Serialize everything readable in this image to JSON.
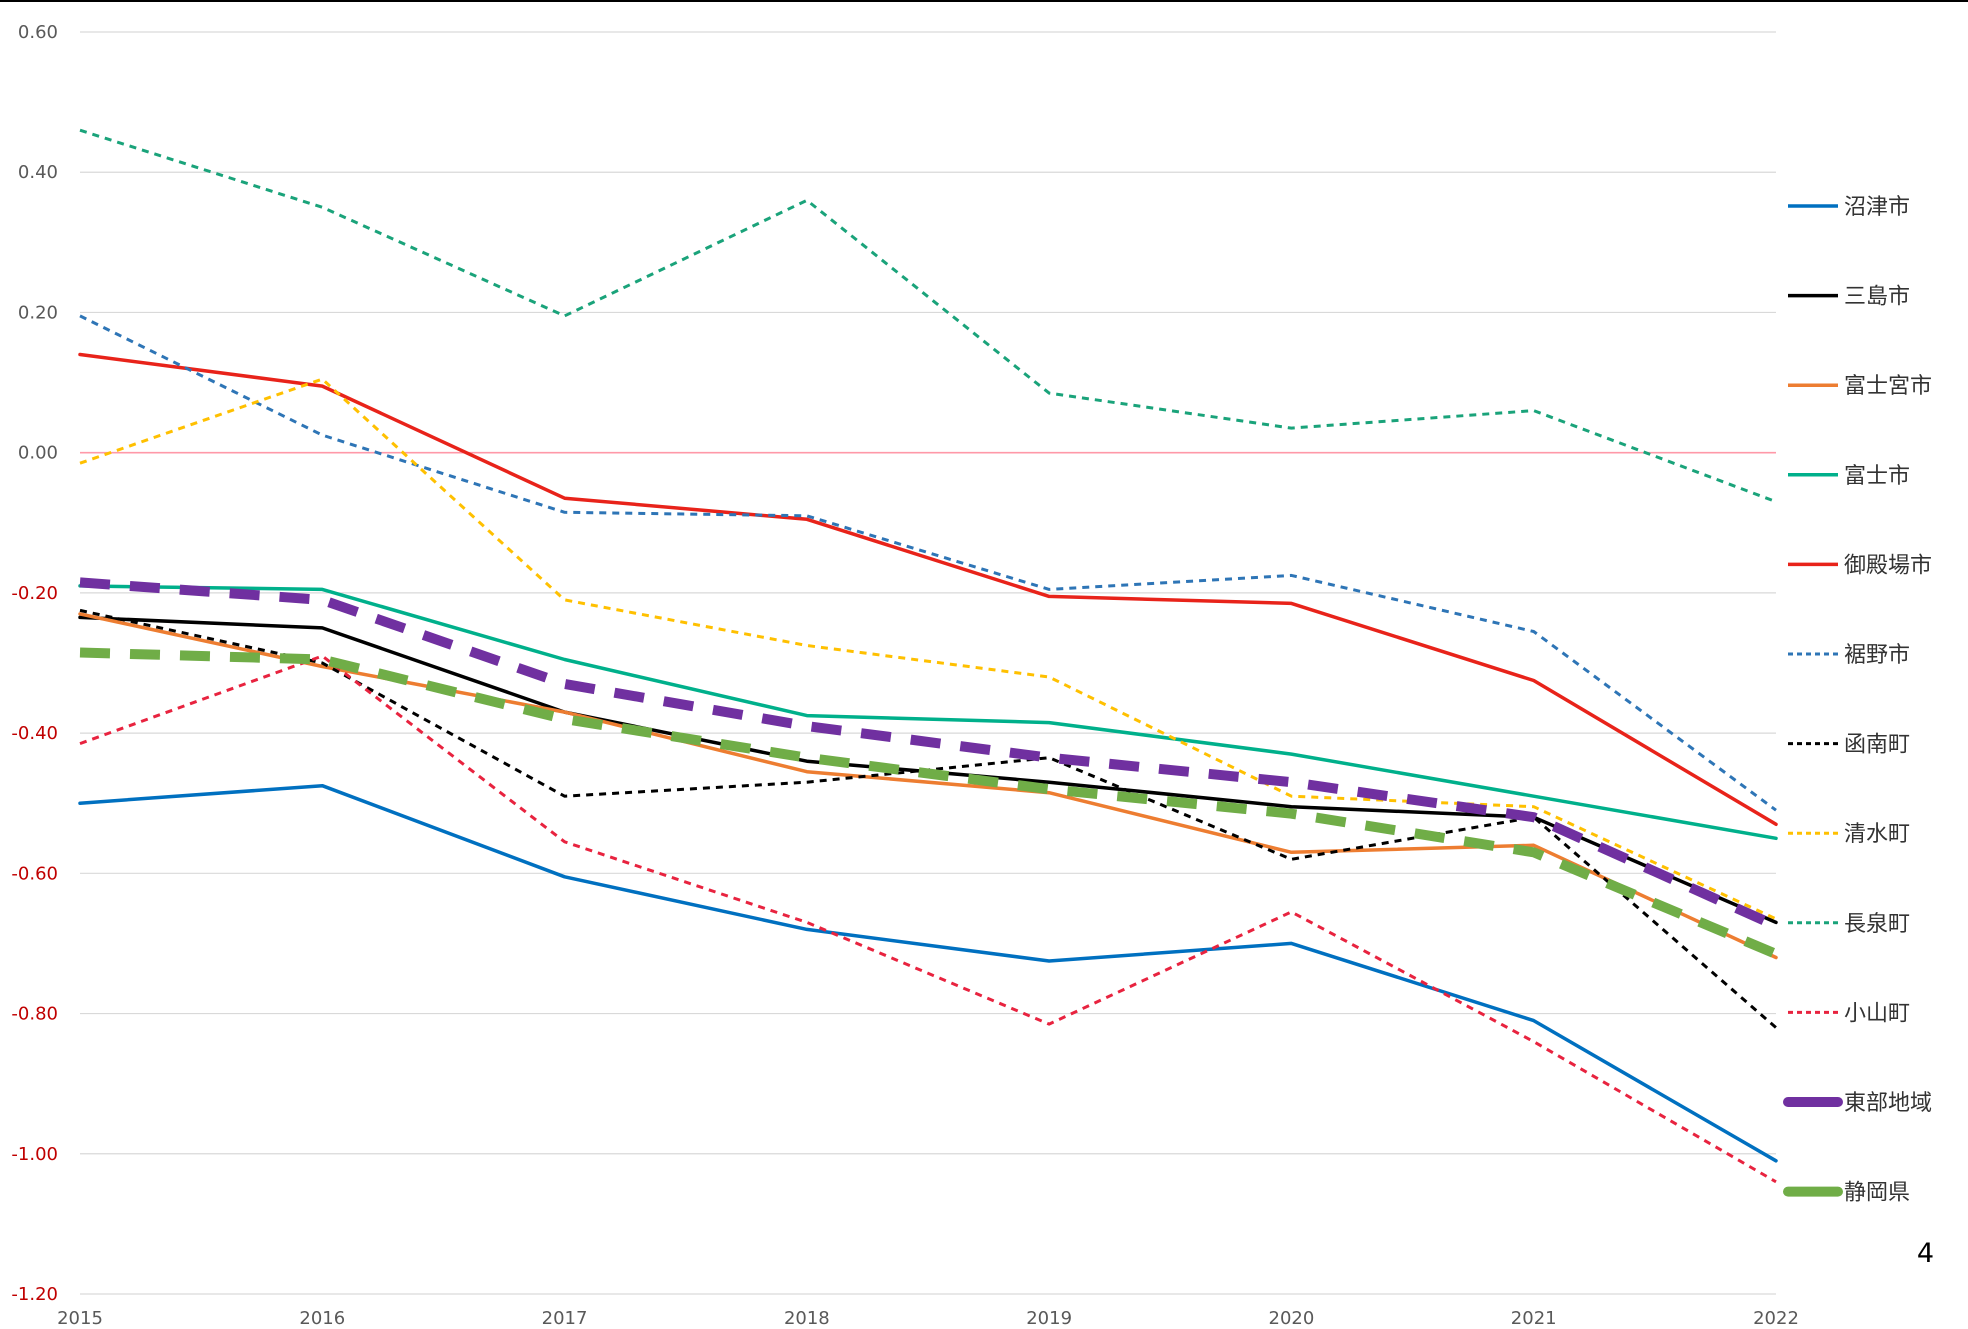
{
  "page_number": "4",
  "chart_data": {
    "type": "line",
    "title": "",
    "xlabel": "",
    "ylabel": "",
    "x": [
      "2015",
      "2016",
      "2017",
      "2018",
      "2019",
      "2020",
      "2021",
      "2022"
    ],
    "ylim": [
      -1.2,
      0.6
    ],
    "y_ticks": [
      "0.60",
      "0.40",
      "0.20",
      "0.00",
      "-0.20",
      "-0.40",
      "-0.60",
      "-0.80",
      "-1.00",
      "-1.20"
    ],
    "grid": true,
    "legend_position": "right",
    "colors": {
      "positive_tick_label": "#595959",
      "negative_tick_label": "#c00000",
      "gridline": "#d9d9d9",
      "zero_line": "#ff99a8",
      "x_tick_label": "#595959"
    },
    "series": [
      {
        "name": "沼津市",
        "color": "#0070c0",
        "style": "solid",
        "values": [
          -0.5,
          -0.475,
          -0.605,
          -0.68,
          -0.725,
          -0.7,
          -0.81,
          -1.01
        ]
      },
      {
        "name": "三島市",
        "color": "#000000",
        "style": "solid",
        "values": [
          -0.235,
          -0.25,
          -0.37,
          -0.44,
          -0.47,
          -0.505,
          -0.52,
          -0.67
        ]
      },
      {
        "name": "富士宮市",
        "color": "#ed7d31",
        "style": "solid",
        "values": [
          -0.23,
          -0.305,
          -0.37,
          -0.455,
          -0.485,
          -0.57,
          -0.56,
          -0.72
        ]
      },
      {
        "name": "富士市",
        "color": "#00b08b",
        "style": "solid",
        "values": [
          -0.19,
          -0.195,
          -0.295,
          -0.375,
          -0.385,
          -0.43,
          -0.49,
          -0.55
        ]
      },
      {
        "name": "御殿場市",
        "color": "#e8231a",
        "style": "solid",
        "values": [
          0.14,
          0.095,
          -0.065,
          -0.095,
          -0.205,
          -0.215,
          -0.325,
          -0.53
        ]
      },
      {
        "name": "裾野市",
        "color": "#2e75b6",
        "style": "dashed",
        "values": [
          0.195,
          0.025,
          -0.085,
          -0.09,
          -0.195,
          -0.175,
          -0.255,
          -0.51
        ]
      },
      {
        "name": "函南町",
        "color": "#000000",
        "style": "dashed",
        "values": [
          -0.225,
          -0.3,
          -0.49,
          -0.47,
          -0.435,
          -0.58,
          -0.52,
          -0.82
        ]
      },
      {
        "name": "清水町",
        "color": "#ffc000",
        "style": "dashed",
        "values": [
          -0.015,
          0.105,
          -0.21,
          -0.275,
          -0.32,
          -0.49,
          -0.505,
          -0.665
        ]
      },
      {
        "name": "長泉町",
        "color": "#1aa37a",
        "style": "dashed",
        "values": [
          0.46,
          0.35,
          0.195,
          0.36,
          0.085,
          0.035,
          0.06,
          -0.07
        ]
      },
      {
        "name": "小山町",
        "color": "#e8233f",
        "style": "dashed",
        "values": [
          -0.415,
          -0.29,
          -0.555,
          -0.67,
          -0.815,
          -0.655,
          -0.84,
          -1.04
        ]
      },
      {
        "name": "東部地域",
        "color": "#7030a0",
        "style": "bold-dashed",
        "values": [
          -0.185,
          -0.21,
          -0.33,
          -0.39,
          -0.435,
          -0.47,
          -0.52,
          -0.675
        ]
      },
      {
        "name": "静岡県",
        "color": "#70ad47",
        "style": "bold-dashed",
        "values": [
          -0.285,
          -0.295,
          -0.38,
          -0.435,
          -0.48,
          -0.515,
          -0.57,
          -0.715
        ]
      }
    ]
  }
}
